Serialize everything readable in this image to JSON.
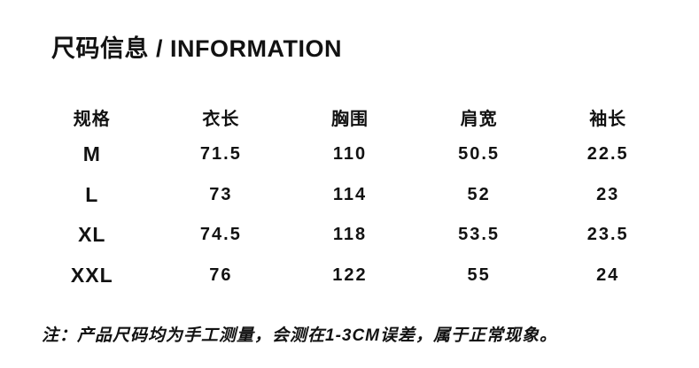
{
  "page": {
    "title": "尺码信息 / INFORMATION",
    "note": "注：产品尺码均为手工测量，会测在1-3CM误差，属于正常现象。"
  },
  "size_table": {
    "headers": [
      "规格",
      "衣长",
      "胸围",
      "肩宽",
      "袖长"
    ],
    "rows": [
      {
        "size": "M",
        "values": [
          "71.5",
          "110",
          "50.5",
          "22.5"
        ]
      },
      {
        "size": "L",
        "values": [
          "73",
          "114",
          "52",
          "23"
        ]
      },
      {
        "size": "XL",
        "values": [
          "74.5",
          "118",
          "53.5",
          "23.5"
        ]
      },
      {
        "size": "XXL",
        "values": [
          "76",
          "122",
          "55",
          "24"
        ]
      }
    ]
  },
  "colors": {
    "text": "#121212",
    "background": "#ffffff"
  }
}
